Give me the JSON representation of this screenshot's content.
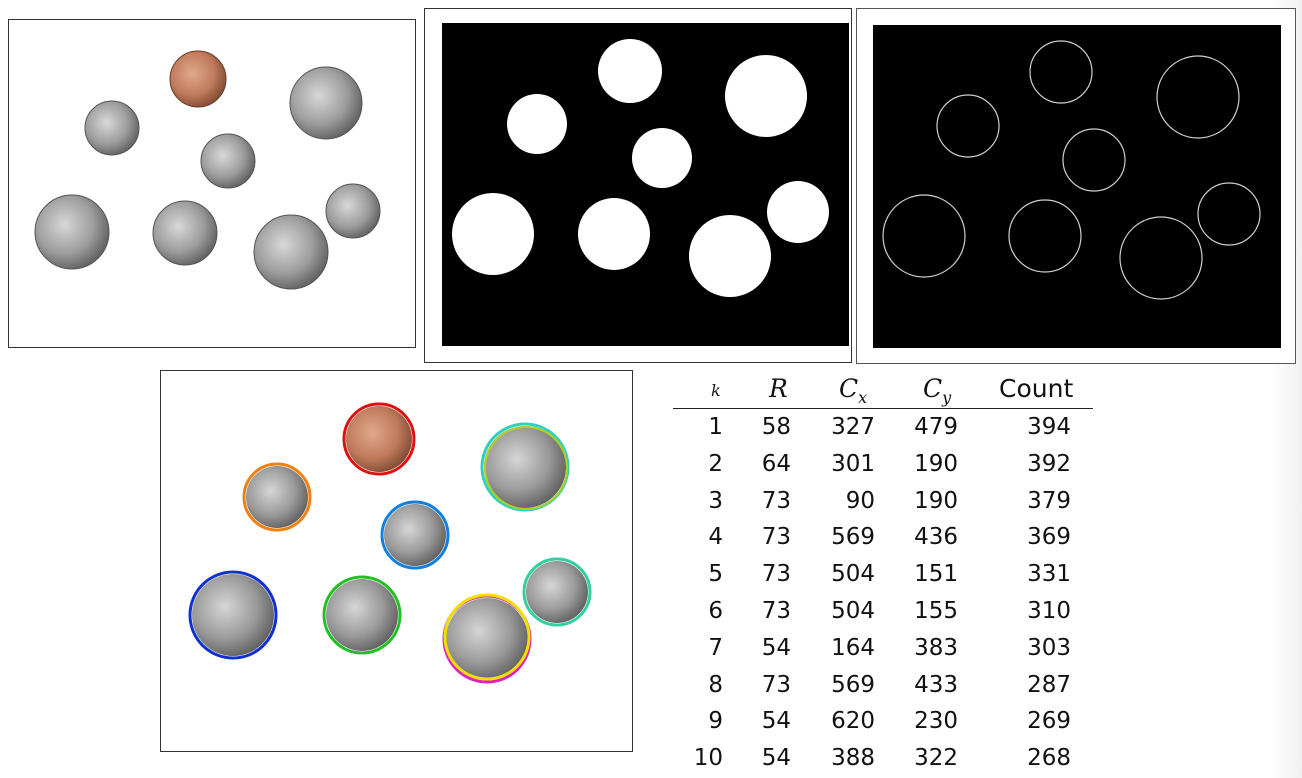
{
  "table": {
    "headers": {
      "k": "k",
      "r": "R",
      "cx": "C",
      "cx_sub": "x",
      "cy": "C",
      "cy_sub": "y",
      "count": "Count"
    },
    "rows": [
      {
        "k": "1",
        "r": "58",
        "cx": "327",
        "cy": "479",
        "count": "394"
      },
      {
        "k": "2",
        "r": "64",
        "cx": "301",
        "cy": "190",
        "count": "392"
      },
      {
        "k": "3",
        "r": "73",
        "cx": "90",
        "cy": "190",
        "count": "379"
      },
      {
        "k": "4",
        "r": "73",
        "cx": "569",
        "cy": "436",
        "count": "369"
      },
      {
        "k": "5",
        "r": "73",
        "cx": "504",
        "cy": "151",
        "count": "331"
      },
      {
        "k": "6",
        "r": "73",
        "cx": "504",
        "cy": "155",
        "count": "310"
      },
      {
        "k": "7",
        "r": "54",
        "cx": "164",
        "cy": "383",
        "count": "303"
      },
      {
        "k": "8",
        "r": "73",
        "cx": "569",
        "cy": "433",
        "count": "287"
      },
      {
        "k": "9",
        "r": "54",
        "cx": "620",
        "cy": "230",
        "count": "269"
      },
      {
        "k": "10",
        "r": "54",
        "cx": "388",
        "cy": "322",
        "count": "268"
      }
    ]
  },
  "images": {
    "original": "coins-photo",
    "binary": "coins-binary-mask",
    "edges": "coins-edge-map",
    "detected": "coins-detected-circles"
  },
  "colors": {
    "penny": "#c98a6a",
    "silver": "#9a9a9a",
    "circle_red": "#e01010",
    "circle_orange": "#f08010",
    "circle_blue": "#1040e0",
    "circle_green": "#20c020",
    "circle_yellow": "#f0e000",
    "circle_cyan": "#30d0c0"
  }
}
